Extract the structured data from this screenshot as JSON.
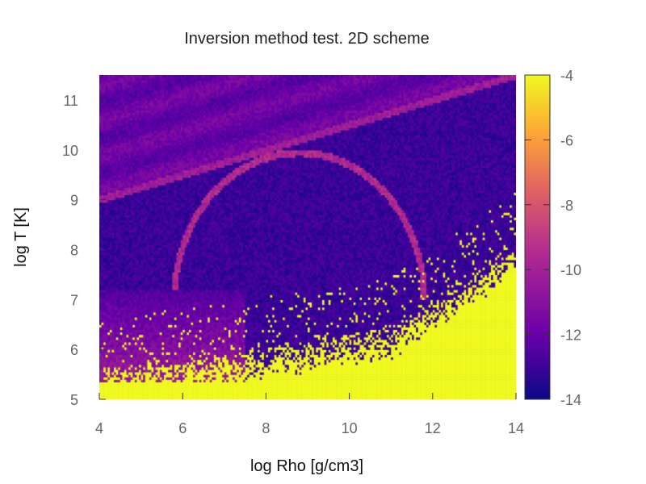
{
  "chart_data": {
    "type": "heatmap",
    "title": "Inversion method test. 2D scheme",
    "xlabel": "log Rho [g/cm3]",
    "ylabel": "log T [K]",
    "xlim": [
      4,
      14
    ],
    "ylim": [
      5,
      11.5
    ],
    "x_ticks": [
      "4",
      "6",
      "8",
      "10",
      "12",
      "14"
    ],
    "y_ticks": [
      "5",
      "6",
      "7",
      "8",
      "9",
      "10",
      "11"
    ],
    "colorbar": {
      "range": [
        -14,
        -4
      ],
      "tick_labels": [
        "-4",
        "-6",
        "-8",
        "-10",
        "-12",
        "-14"
      ],
      "colormap": [
        "#0d0887",
        "#6a00a8",
        "#b12a90",
        "#e16462",
        "#fca636",
        "#f0f921"
      ]
    },
    "grid": false,
    "resolution": {
      "nx": 200,
      "ny": 130
    },
    "features": {
      "background_level": -13,
      "upper_left_level": -12,
      "lower_band_level": -4,
      "diagonal_ridge_level": -10.5,
      "arc_ridge_level": -10
    }
  }
}
